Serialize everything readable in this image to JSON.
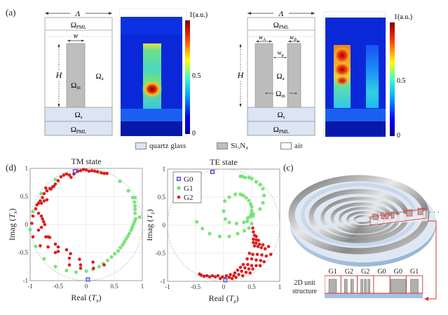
{
  "panel_labels": {
    "a": "(a)",
    "c": "(c)",
    "d": "(d)"
  },
  "structure_left": {
    "period": "Λ",
    "pml_top": "Ω",
    "pml_sub": "PML",
    "width": "w",
    "height": "H",
    "material": "Ω",
    "material_sub": "m",
    "air": "Ω",
    "air_sub": "a",
    "substrate": "Ω",
    "substrate_sub": "s",
    "pml_bottom": "Ω",
    "pml_bottom_sub": "PML"
  },
  "structure_right": {
    "period": "Λ",
    "pml_top": "Ω",
    "pml_sub": "PML",
    "width_a": "w",
    "width_a_sub": "A",
    "width_b": "w",
    "width_b_sub": "B",
    "gap": "w",
    "gap_sub": "g",
    "height": "H",
    "air": "Ω",
    "air_sub": "a",
    "material": "Ω",
    "material_sub": "m",
    "substrate": "Ω",
    "substrate_sub": "s",
    "pml_bottom": "Ω",
    "pml_bottom_sub": "PML"
  },
  "colorbar": {
    "title": "1(a.u.)",
    "mid": "0.5",
    "min": "0"
  },
  "legend_materials": [
    {
      "label": "quartz glass",
      "color": "#dbe5f3"
    },
    {
      "label": "Si₃N₄",
      "color": "#bdbdbd"
    },
    {
      "label": "air",
      "color": "#ffffff"
    }
  ],
  "unit_structure": {
    "label_line1": "2D unit",
    "label_line2": "structure",
    "cells": [
      "G1",
      "G2",
      "G2",
      "G0",
      "G0",
      "G1"
    ],
    "ellipsis": "· · ·"
  },
  "chart_data": [
    {
      "type": "scatter",
      "title": "TM state",
      "xlabel": "Real (T_x)",
      "ylabel": "Imag (T_x)",
      "xlim": [
        -1,
        1
      ],
      "ylim": [
        -1,
        1
      ],
      "xticks": [
        "-1",
        "-0.5",
        "0",
        "0.5",
        "1"
      ],
      "yticks": [
        "1",
        "0.5",
        "0",
        "-0.5",
        "-1"
      ],
      "grid": true,
      "unit_circle": true,
      "series": [
        {
          "name": "G0",
          "color": "#3b3bd0",
          "marker": "square",
          "points": [
            [
              -0.2,
              0.95
            ],
            [
              0.03,
              -0.98
            ]
          ]
        },
        {
          "name": "G1",
          "color": "#6ee06e",
          "marker": "circle",
          "points": [
            [
              -0.55,
              0.8
            ],
            [
              -0.8,
              0.55
            ],
            [
              -0.95,
              0.23
            ],
            [
              -1.0,
              -0.09
            ],
            [
              -0.9,
              -0.39
            ],
            [
              -0.75,
              -0.61
            ],
            [
              -0.55,
              -0.75
            ],
            [
              -0.35,
              -0.82
            ],
            [
              -0.18,
              -0.85
            ],
            [
              0.0,
              -0.83
            ],
            [
              0.12,
              -0.8
            ],
            [
              0.23,
              -0.75
            ],
            [
              0.3,
              -0.7
            ],
            [
              0.38,
              -0.64
            ],
            [
              0.45,
              -0.58
            ],
            [
              0.51,
              -0.52
            ],
            [
              0.57,
              -0.47
            ],
            [
              0.61,
              -0.41
            ],
            [
              0.65,
              -0.36
            ],
            [
              0.68,
              -0.31
            ],
            [
              0.71,
              -0.26
            ],
            [
              0.74,
              -0.21
            ],
            [
              0.77,
              -0.16
            ],
            [
              0.8,
              -0.1
            ],
            [
              0.82,
              -0.05
            ],
            [
              0.84,
              0.0
            ],
            [
              0.86,
              0.05
            ],
            [
              0.88,
              0.1
            ],
            [
              0.95,
              0.13
            ],
            [
              0.87,
              0.2
            ],
            [
              0.87,
              0.27
            ],
            [
              0.87,
              0.33
            ],
            [
              0.86,
              0.4
            ],
            [
              0.87,
              0.48
            ],
            [
              0.83,
              0.48
            ],
            [
              0.75,
              0.6
            ],
            [
              0.6,
              0.77
            ],
            [
              0.23,
              0.93
            ]
          ]
        },
        {
          "name": "G2",
          "color": "#dd1f1f",
          "marker": "star",
          "points": [
            [
              -0.45,
              0.85
            ],
            [
              -0.4,
              0.88
            ],
            [
              -0.35,
              0.9
            ],
            [
              -0.3,
              0.88
            ],
            [
              -0.27,
              0.84
            ],
            [
              -0.22,
              0.9
            ],
            [
              -0.15,
              0.95
            ],
            [
              -0.1,
              0.96
            ],
            [
              -0.05,
              0.98
            ],
            [
              0.0,
              0.97
            ],
            [
              0.05,
              0.95
            ],
            [
              0.1,
              0.96
            ],
            [
              0.15,
              0.95
            ],
            [
              0.2,
              0.94
            ],
            [
              0.27,
              0.92
            ],
            [
              0.32,
              0.91
            ],
            [
              0.37,
              0.91
            ],
            [
              -0.5,
              0.78
            ],
            [
              -0.55,
              0.72
            ],
            [
              -0.6,
              0.67
            ],
            [
              -0.65,
              0.64
            ],
            [
              -0.7,
              0.6
            ],
            [
              -0.75,
              0.55
            ],
            [
              -0.58,
              0.68
            ],
            [
              -0.63,
              0.63
            ],
            [
              -0.72,
              0.65
            ],
            [
              -0.78,
              0.48
            ],
            [
              -0.82,
              0.42
            ],
            [
              -0.85,
              0.38
            ],
            [
              -0.88,
              0.35
            ],
            [
              -0.8,
              0.38
            ],
            [
              -0.75,
              0.42
            ],
            [
              -0.7,
              0.44
            ],
            [
              -0.9,
              0.28
            ],
            [
              -0.95,
              0.15
            ],
            [
              -0.97,
              0.02
            ],
            [
              -0.85,
              0.2
            ],
            [
              -0.8,
              0.15
            ],
            [
              -0.78,
              0.1
            ],
            [
              -0.76,
              0.05
            ],
            [
              -0.74,
              0.0
            ],
            [
              -0.8,
              -0.05
            ],
            [
              -0.85,
              -0.1
            ],
            [
              -0.95,
              -0.22
            ],
            [
              -0.72,
              -0.22
            ],
            [
              -0.68,
              -0.22
            ],
            [
              -0.65,
              -0.23
            ],
            [
              -0.82,
              -0.38
            ],
            [
              -0.68,
              -0.4
            ],
            [
              -0.55,
              -0.35
            ],
            [
              -0.5,
              -0.4
            ],
            [
              -0.5,
              -0.48
            ],
            [
              -0.55,
              -0.5
            ],
            [
              -0.35,
              -0.45
            ],
            [
              -0.28,
              -0.52
            ],
            [
              -0.3,
              -0.6
            ],
            [
              -0.12,
              -0.62
            ],
            [
              -0.3,
              -0.72
            ],
            [
              -0.1,
              -0.72
            ],
            [
              0.12,
              -0.67
            ],
            [
              -0.1,
              -0.78
            ],
            [
              0.13,
              -0.78
            ],
            [
              0.32,
              -0.72
            ]
          ]
        }
      ]
    },
    {
      "type": "scatter",
      "title": "TE state",
      "xlabel": "Real (T_z)",
      "ylabel": "Imag (T_z)",
      "xlim": [
        -1,
        1
      ],
      "ylim": [
        -1,
        1
      ],
      "xticks": [
        "-1",
        "-0.5",
        "0",
        "0.5",
        "1"
      ],
      "yticks": [
        "1",
        "0.5",
        "0",
        "-0.5",
        "-1"
      ],
      "grid": true,
      "unit_circle": true,
      "legend": "top-left",
      "series": [
        {
          "name": "G0",
          "color": "#3b3bd0",
          "marker": "square",
          "points": [
            [
              -0.2,
              0.95
            ],
            [
              0.03,
              -0.98
            ]
          ]
        },
        {
          "name": "G1",
          "color": "#6ee06e",
          "marker": "circle",
          "points": [
            [
              -0.48,
              0.06
            ],
            [
              -0.38,
              -0.06
            ],
            [
              -0.25,
              -0.15
            ],
            [
              -0.07,
              -0.2
            ],
            [
              0.1,
              -0.2
            ],
            [
              0.25,
              -0.15
            ],
            [
              0.37,
              -0.1
            ],
            [
              0.45,
              -0.05
            ],
            [
              0.5,
              0.03
            ],
            [
              0.42,
              0.07
            ],
            [
              0.36,
              0.05
            ],
            [
              0.23,
              0.03
            ],
            [
              0.1,
              0.05
            ],
            [
              0.03,
              0.11
            ],
            [
              0.0,
              0.25
            ],
            [
              0.02,
              0.43
            ],
            [
              0.1,
              0.5
            ],
            [
              0.21,
              0.55
            ],
            [
              0.3,
              0.55
            ],
            [
              0.35,
              0.53
            ],
            [
              0.4,
              0.49
            ],
            [
              0.45,
              0.44
            ],
            [
              0.48,
              0.38
            ],
            [
              0.5,
              0.33
            ],
            [
              0.5,
              0.26
            ],
            [
              0.49,
              0.2
            ],
            [
              0.47,
              0.15
            ],
            [
              0.43,
              0.13
            ],
            [
              0.53,
              0.2
            ],
            [
              0.52,
              0.16
            ],
            [
              0.65,
              0.29
            ],
            [
              0.7,
              0.4
            ],
            [
              0.72,
              0.53
            ],
            [
              0.7,
              0.65
            ],
            [
              0.65,
              0.72
            ],
            [
              0.58,
              0.77
            ],
            [
              0.5,
              0.83
            ],
            [
              0.45,
              0.85
            ],
            [
              0.38,
              0.85
            ],
            [
              0.33,
              0.87
            ],
            [
              0.3,
              0.87
            ]
          ]
        },
        {
          "name": "G2",
          "color": "#dd1f1f",
          "marker": "star",
          "points": [
            [
              0.52,
              -0.05
            ],
            [
              0.53,
              -0.12
            ],
            [
              0.55,
              -0.18
            ],
            [
              0.58,
              -0.2
            ],
            [
              0.53,
              -0.25
            ],
            [
              0.58,
              -0.26
            ],
            [
              0.62,
              -0.27
            ],
            [
              0.53,
              -0.31
            ],
            [
              0.58,
              -0.32
            ],
            [
              0.64,
              -0.34
            ],
            [
              0.7,
              -0.35
            ],
            [
              0.55,
              -0.37
            ],
            [
              0.61,
              -0.38
            ],
            [
              0.67,
              -0.4
            ],
            [
              0.74,
              -0.42
            ],
            [
              0.8,
              -0.38
            ],
            [
              0.46,
              -0.5
            ],
            [
              0.52,
              -0.52
            ],
            [
              0.6,
              -0.52
            ],
            [
              0.68,
              -0.53
            ],
            [
              0.76,
              -0.55
            ],
            [
              0.84,
              -0.52
            ],
            [
              0.42,
              -0.6
            ],
            [
              0.5,
              -0.6
            ],
            [
              0.58,
              -0.62
            ],
            [
              0.66,
              -0.63
            ],
            [
              0.72,
              -0.65
            ],
            [
              0.35,
              -0.7
            ],
            [
              0.43,
              -0.7
            ],
            [
              0.5,
              -0.72
            ],
            [
              0.58,
              -0.72
            ],
            [
              0.65,
              -0.72
            ],
            [
              0.3,
              -0.75
            ],
            [
              0.38,
              -0.76
            ],
            [
              0.45,
              -0.78
            ],
            [
              0.52,
              -0.78
            ],
            [
              0.25,
              -0.8
            ],
            [
              0.32,
              -0.82
            ],
            [
              0.4,
              -0.84
            ],
            [
              0.47,
              -0.85
            ],
            [
              0.2,
              -0.85
            ],
            [
              0.27,
              -0.88
            ],
            [
              0.34,
              -0.9
            ],
            [
              0.12,
              -0.88
            ],
            [
              0.18,
              -0.9
            ],
            [
              0.22,
              -0.93
            ],
            [
              0.05,
              -0.9
            ],
            [
              0.1,
              -0.93
            ],
            [
              0.15,
              -0.95
            ],
            [
              -0.02,
              -0.92
            ],
            [
              0.03,
              -0.95
            ],
            [
              -0.1,
              -0.9
            ],
            [
              -0.06,
              -0.95
            ],
            [
              -0.15,
              -0.92
            ],
            [
              -0.2,
              -0.9
            ],
            [
              -0.25,
              -0.92
            ],
            [
              -0.3,
              -0.9
            ],
            [
              -0.35,
              -0.91
            ],
            [
              -0.4,
              -0.89
            ],
            [
              -0.43,
              -0.87
            ]
          ]
        }
      ]
    }
  ]
}
